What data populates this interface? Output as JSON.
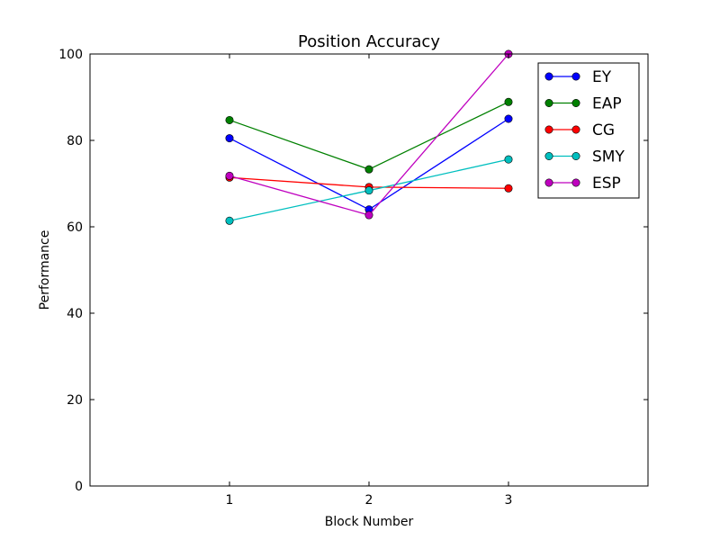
{
  "chart_data": {
    "type": "line",
    "title": "Position Accuracy",
    "xlabel": "Block Number",
    "ylabel": "Performance",
    "x": [
      1,
      2,
      3
    ],
    "xlim": [
      0,
      4
    ],
    "ylim": [
      0,
      100
    ],
    "xticks": [
      1,
      2,
      3
    ],
    "yticks": [
      0,
      20,
      40,
      60,
      80,
      100
    ],
    "grid": false,
    "legend_position": "top-right",
    "marker": "circle",
    "series": [
      {
        "name": "EY",
        "color": "#0000ff",
        "values": [
          80.5,
          64.0,
          85.0
        ]
      },
      {
        "name": "EAP",
        "color": "#008000",
        "values": [
          84.7,
          73.3,
          88.9
        ]
      },
      {
        "name": "CG",
        "color": "#ff0000",
        "values": [
          71.4,
          69.2,
          68.9
        ]
      },
      {
        "name": "SMY",
        "color": "#00bfbf",
        "values": [
          61.4,
          68.4,
          75.6
        ]
      },
      {
        "name": "ESP",
        "color": "#bf00bf",
        "values": [
          71.8,
          62.7,
          100.0
        ]
      }
    ]
  }
}
